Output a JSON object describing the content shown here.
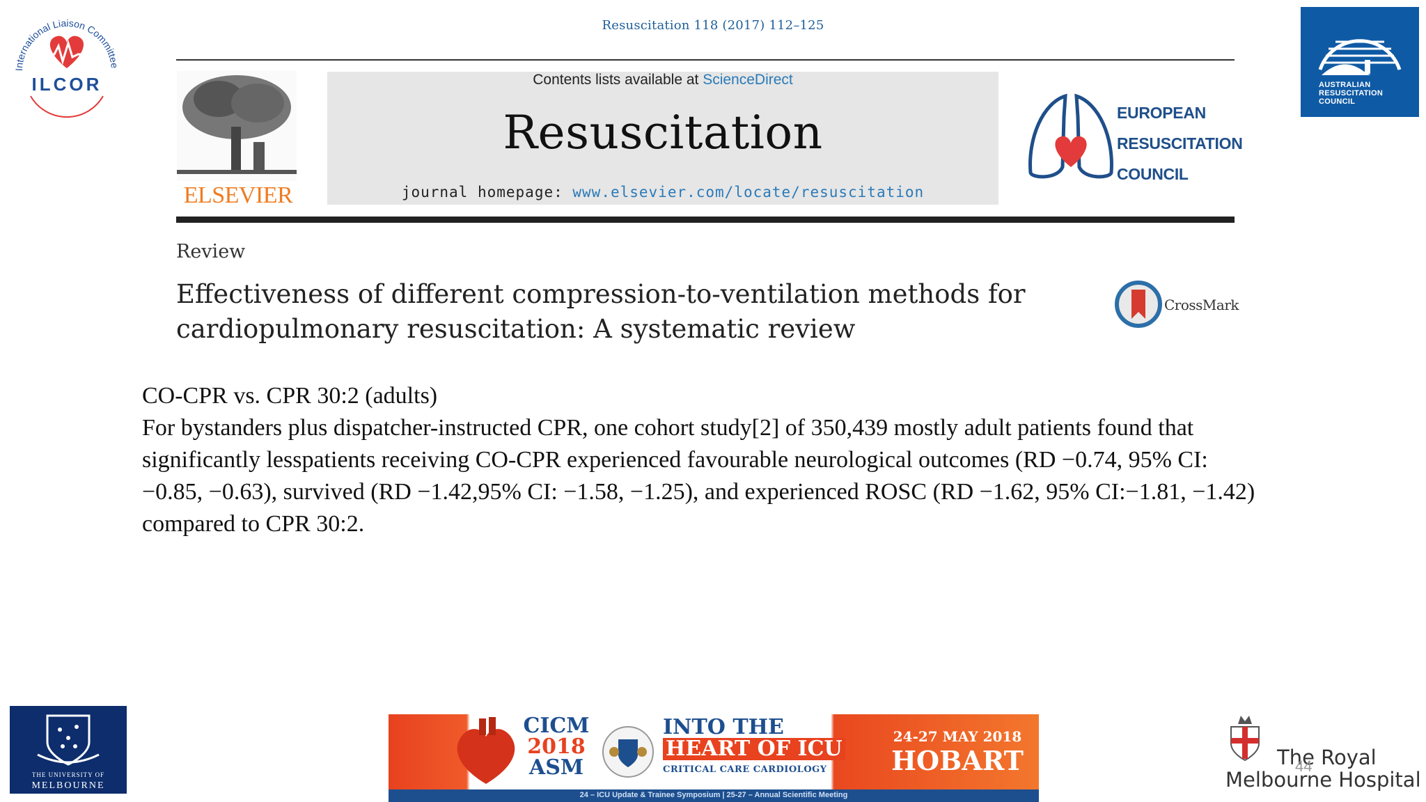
{
  "logos": {
    "ilcor_ring": "International Liaison Committee on Resuscitation",
    "ilcor_word": "ILCOR",
    "arc_lines": [
      "AUSTRALIAN",
      "RESUSCITATION",
      "COUNCIL"
    ],
    "unimelb_line1": "THE UNIVERSITY OF",
    "unimelb_line2": "MELBOURNE",
    "rmh": [
      "The Royal",
      "Melbourne Hospital"
    ]
  },
  "journal_header": {
    "citation": "Resuscitation 118 (2017) 112–125",
    "contents_prefix": "Contents lists available at ",
    "contents_link": "ScienceDirect",
    "journal_name": "Resuscitation",
    "homepage_prefix": "journal homepage: ",
    "homepage_url": "www.elsevier.com/locate/resuscitation",
    "publisher": "ELSEVIER",
    "erc_lines": [
      "EUROPEAN",
      "RESUSCITATION",
      "COUNCIL"
    ],
    "crossmark": "CrossMark"
  },
  "article": {
    "type": "Review",
    "title_line1": "Effectiveness of different compression-to-ventilation methods for",
    "title_line2": "cardiopulmonary resuscitation: A systematic review"
  },
  "slide": {
    "heading": "CO-CPR vs. CPR 30:2 (adults)",
    "paragraph": "For bystanders plus dispatcher-instructed CPR, one cohort study[2] of 350,439 mostly adult patients found that significantly lesspatients receiving CO-CPR experienced favourable neurological outcomes (RD −0.74, 95% CI: −0.85, −0.63), survived (RD −1.42,95% CI: −1.58, −1.25), and experienced ROSC (RD −1.62, 95% CI:−1.81, −1.42) compared to CPR 30:2."
  },
  "banner": {
    "cicm": "CICM",
    "year": "2018",
    "asm": "ASM",
    "into": "INTO THE",
    "heart": "HEART OF ICU",
    "cardio": "CRITICAL CARE CARDIOLOGY",
    "dates": "24-27 MAY 2018",
    "city": "HOBART",
    "strip": "24 – ICU Update & Trainee Symposium | 25-27 – Annual Scientific Meeting"
  },
  "page_number": "44",
  "colors": {
    "elsevier_orange": "#f07b1f",
    "link_blue": "#2a7ab8",
    "erc_blue": "#1f4f8a",
    "arc_blue": "#0f5aa5",
    "banner_orange": "#e8421f",
    "banner_blue": "#1d4f8f"
  }
}
